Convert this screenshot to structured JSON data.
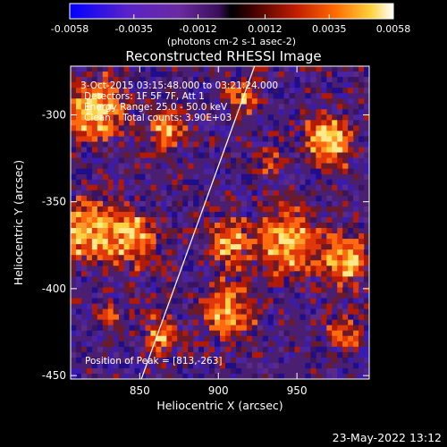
{
  "chart_data": {
    "type": "heatmap",
    "title": "Reconstructed RHESSI Image",
    "xlabel": "Heliocentric X (arcsec)",
    "ylabel": "Heliocentric Y (arcsec)",
    "xlim": [
      806,
      996
    ],
    "ylim": [
      -452,
      -272
    ],
    "x_ticks": [
      850,
      900,
      950
    ],
    "y_ticks": [
      -300,
      -350,
      -400,
      -450
    ],
    "x_tick_labels": [
      "850",
      "900",
      "950"
    ],
    "y_tick_labels": [
      "-300",
      "-350",
      "-400",
      "-450"
    ],
    "colorbar": {
      "min": -0.0058,
      "max": 0.0058,
      "ticks": [
        -0.0058,
        -0.0035,
        -0.0012,
        0.0012,
        0.0035,
        0.0058
      ],
      "tick_labels": [
        "-0.0058",
        "-0.0035",
        "-0.0012",
        "0.0012",
        "0.0035",
        "0.0058"
      ],
      "units_label": "(photons cm-2 s-1 asec-2)",
      "colors": [
        "#0000ff",
        "#5b22c8",
        "#6a2aa0",
        "#3a0f5a",
        "#000000",
        "#3a0000",
        "#c21d00",
        "#ff6a00",
        "#ffd23c",
        "#ffffff"
      ]
    },
    "annotations": [
      "3-Oct-2015 03:15:48.000 to 03:21:24.000",
      "Detectors: 1F 5F 7F, Att 1",
      "Energy Range: 25.0 - 50.0 keV",
      "Clean    Total counts: 3.90E+03"
    ],
    "peak_label": "Position of Peak = [813,-263]",
    "limb_line": [
      [
        851,
        -452
      ],
      [
        923,
        -272
      ]
    ],
    "grid": false
  },
  "footer_date": "23-May-2022 13:12",
  "colors": {
    "background": "#000000",
    "text": "#ffffff",
    "limb": "#ffffff"
  }
}
